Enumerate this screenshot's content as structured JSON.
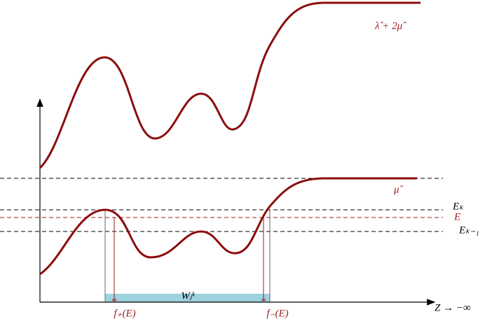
{
  "labels": {
    "upper_curve": "λ̂ + 2μ̂",
    "lower_curve": "μ̂",
    "e_k": "Eₖ",
    "e": "E",
    "e_k_minus_1": "Eₖ₋₁",
    "window": "Wⱼᵏ",
    "f_plus": "f₊(E)",
    "f_minus": "f₋(E)",
    "x_axis": "Z → −∞"
  }
}
